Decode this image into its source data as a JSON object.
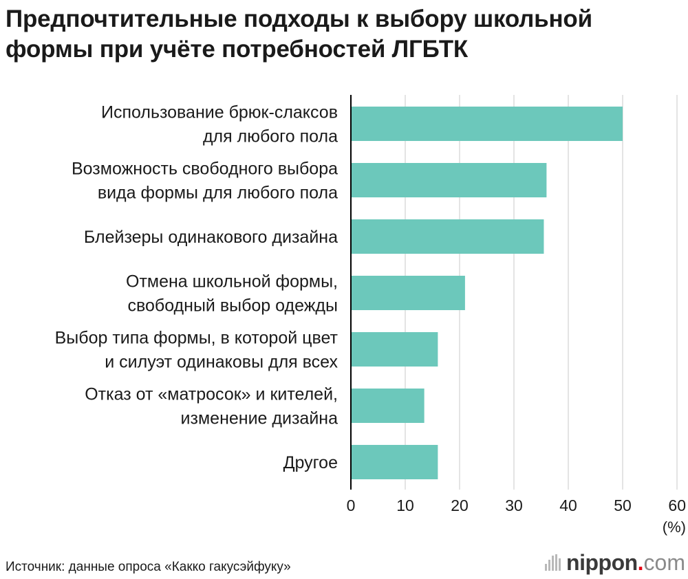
{
  "title_lines": [
    "Предпочтительные подходы к выбору школьной",
    "формы при учёте потребностей ЛГБТК"
  ],
  "source": "Источник: данные опроса «Какко гакусэйфуку»",
  "logo": {
    "text": "nippon",
    "dot": ".",
    "tld": "com"
  },
  "colors": {
    "bar": "#6cc8bb",
    "axis": "#000000",
    "grid": "#c8c8c8"
  },
  "chart_data": {
    "type": "bar",
    "orientation": "horizontal",
    "categories": [
      [
        "Использование брюк-слаксов",
        "для любого пола"
      ],
      [
        "Возможность свободного выбора",
        "вида формы для любого пола"
      ],
      [
        "Блейзеры одинакового дизайна"
      ],
      [
        "Отмена школьной формы,",
        "свободный выбор одежды"
      ],
      [
        "Выбор типа формы, в которой цвет",
        "и силуэт одинаковы для всех"
      ],
      [
        "Отказ от «матросок» и кителей,",
        "изменение дизайна"
      ],
      [
        "Другое"
      ]
    ],
    "values": [
      50,
      36,
      35.5,
      21,
      16,
      13.5,
      16
    ],
    "xlim": [
      0,
      60
    ],
    "xticks": [
      0,
      10,
      20,
      30,
      40,
      50,
      60
    ],
    "unit_label": "(%)",
    "grid": true,
    "legend": "none"
  }
}
